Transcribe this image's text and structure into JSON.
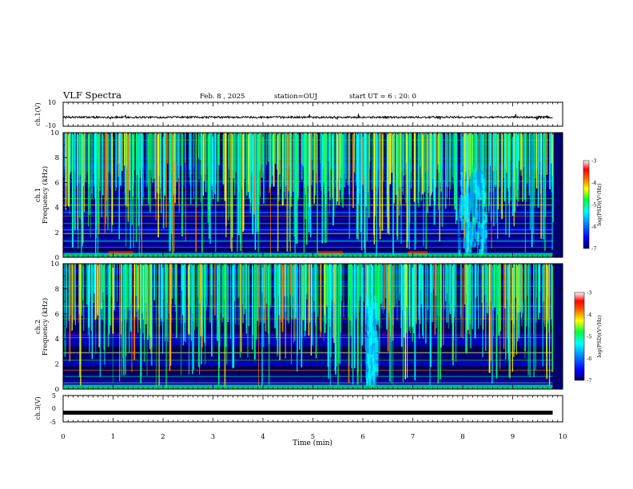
{
  "header": {
    "title": "VLF Spectra",
    "date": "Feb. 8 , 2025",
    "station": "station=OUJ",
    "start": "start UT = 6 : 20: 0"
  },
  "chart_data": [
    {
      "id": "ch1-waveform",
      "type": "line",
      "ylabel": "ch.1(V)",
      "ylim": [
        -10,
        10
      ],
      "y_ticks": [
        10,
        -10
      ],
      "xlim": [
        0,
        10
      ],
      "baseline": -2.5,
      "description_values": {
        "amplitude_range": [
          -3.5,
          -1.5
        ]
      }
    },
    {
      "id": "ch1-spectrogram",
      "type": "heatmap",
      "channel_label": "ch.1",
      "ylabel": "Frequency (kHz)",
      "ylim": [
        0,
        10
      ],
      "y_ticks": [
        0,
        2,
        4,
        6,
        8,
        10
      ],
      "xlim": [
        0,
        10
      ],
      "colorbar": {
        "label": "log(PSD)(V²/Hz)",
        "range": [
          -7,
          -3
        ],
        "ticks": [
          -3,
          -4,
          -5,
          -6,
          -7
        ]
      },
      "features": {
        "dense_activity_window_min": [
          7.9,
          8.45
        ],
        "strong_low_freq_band_kHz": 0.3
      }
    },
    {
      "id": "ch2-spectrogram",
      "type": "heatmap",
      "channel_label": "ch.2",
      "ylabel": "Frequency (kHz)",
      "ylim": [
        0,
        10
      ],
      "y_ticks": [
        0,
        2,
        4,
        6,
        8,
        10
      ],
      "xlim": [
        0,
        10
      ],
      "colorbar": {
        "label": "log(PSD)(V²/Hz)",
        "range": [
          -7,
          -3
        ],
        "ticks": [
          -3,
          -4,
          -5,
          -6,
          -7
        ]
      }
    },
    {
      "id": "ch3-waveform",
      "type": "line",
      "ylabel": "ch.3(V)",
      "ylim": [
        -5,
        5
      ],
      "y_ticks": [
        5,
        0,
        -5
      ],
      "xlim": [
        0,
        10
      ],
      "baseline": -1.5
    }
  ],
  "x_axis": {
    "label": "Time (min)",
    "ticks": [
      0,
      1,
      2,
      3,
      4,
      5,
      6,
      7,
      8,
      9,
      10
    ],
    "data_end": 9.8
  },
  "colors": {
    "map": [
      "#00006e",
      "#0000ff",
      "#0096ff",
      "#00ffff",
      "#00ff66",
      "#ffff00",
      "#ff7700",
      "#ff0000",
      "#ffdddd"
    ]
  }
}
